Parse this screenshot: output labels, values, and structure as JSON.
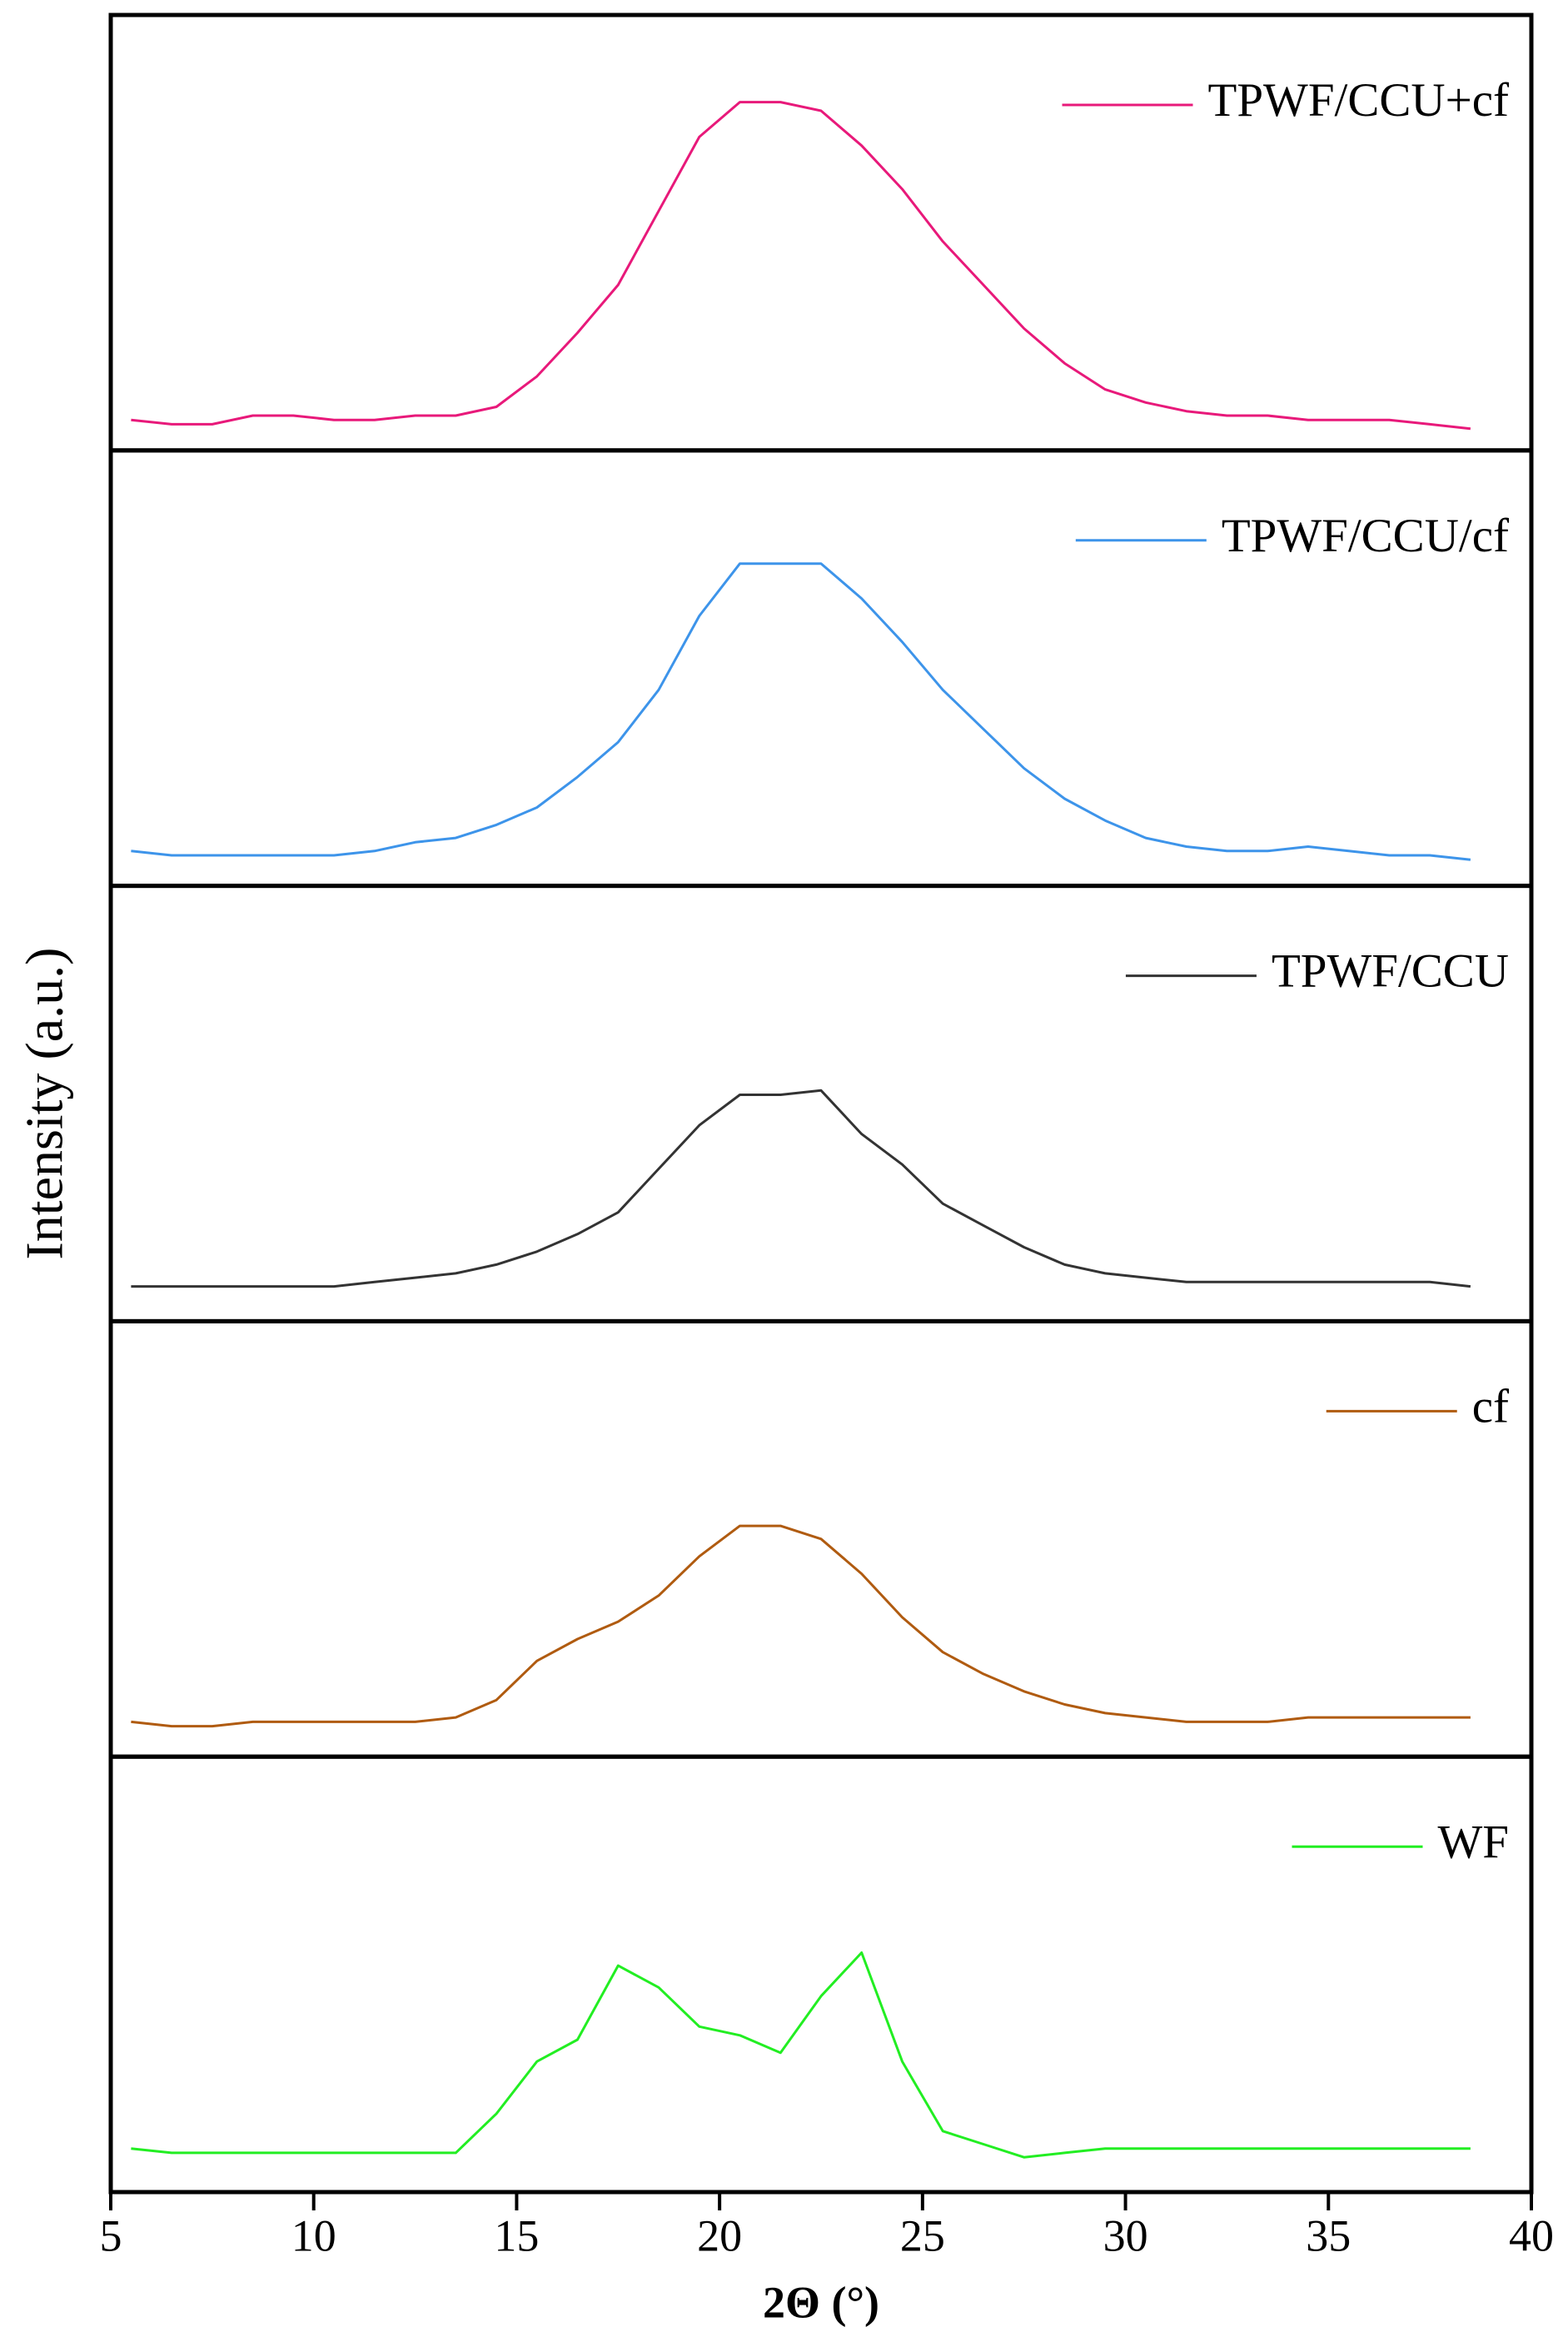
{
  "chart_data": {
    "type": "line",
    "xlabel": "2Θ (°)",
    "ylabel": "Intensity (a.u.)",
    "xlim": [
      5,
      40
    ],
    "xticks": [
      5,
      10,
      15,
      20,
      25,
      30,
      35,
      40
    ],
    "ylim": [
      0,
      100
    ],
    "x": [
      5.5,
      6.5,
      7.5,
      8.5,
      9.5,
      10.5,
      11.5,
      12.5,
      13.5,
      14.5,
      15.5,
      16.5,
      17.5,
      18.5,
      19.5,
      20.5,
      21.5,
      22.5,
      23.5,
      24.5,
      25.5,
      26.5,
      27.5,
      28.5,
      29.5,
      30.5,
      31.5,
      32.5,
      33.5,
      34.5,
      35.5,
      36.5,
      37.5,
      38.5
    ],
    "series": [
      {
        "name": "TPWF/CCU+cf",
        "color": "#e8197a",
        "values": [
          7,
          6,
          6,
          8,
          8,
          7,
          7,
          8,
          8,
          10,
          17,
          27,
          38,
          55,
          72,
          80,
          80,
          78,
          70,
          60,
          48,
          38,
          28,
          20,
          14,
          11,
          9,
          8,
          8,
          7,
          7,
          7,
          6,
          5
        ]
      },
      {
        "name": "TPWF/CCU/cf",
        "color": "#3d94ea",
        "values": [
          8,
          7,
          7,
          7,
          7,
          7,
          8,
          10,
          11,
          14,
          18,
          25,
          33,
          45,
          62,
          74,
          74,
          74,
          66,
          56,
          45,
          36,
          27,
          20,
          15,
          11,
          9,
          8,
          8,
          9,
          8,
          7,
          7,
          6
        ]
      },
      {
        "name": "TPWF/CCU",
        "color": "#333333",
        "values": [
          8,
          8,
          8,
          8,
          8,
          8,
          9,
          10,
          11,
          13,
          16,
          20,
          25,
          35,
          45,
          52,
          52,
          53,
          43,
          36,
          27,
          22,
          17,
          13,
          11,
          10,
          9,
          9,
          9,
          9,
          9,
          9,
          9,
          8
        ]
      },
      {
        "name": "cf",
        "color": "#b05b10",
        "values": [
          8,
          7,
          7,
          8,
          8,
          8,
          8,
          8,
          9,
          13,
          22,
          27,
          31,
          37,
          46,
          53,
          53,
          50,
          42,
          32,
          24,
          19,
          15,
          12,
          10,
          9,
          8,
          8,
          8,
          9,
          9,
          9,
          9,
          9
        ]
      },
      {
        "name": "WF",
        "color": "#22ee22",
        "values": [
          10,
          9,
          9,
          9,
          9,
          9,
          9,
          9,
          9,
          18,
          30,
          35,
          52,
          47,
          38,
          36,
          32,
          45,
          55,
          30,
          14,
          11,
          8,
          9,
          10,
          10,
          10,
          10,
          10,
          10,
          10,
          10,
          10,
          10
        ]
      }
    ]
  }
}
